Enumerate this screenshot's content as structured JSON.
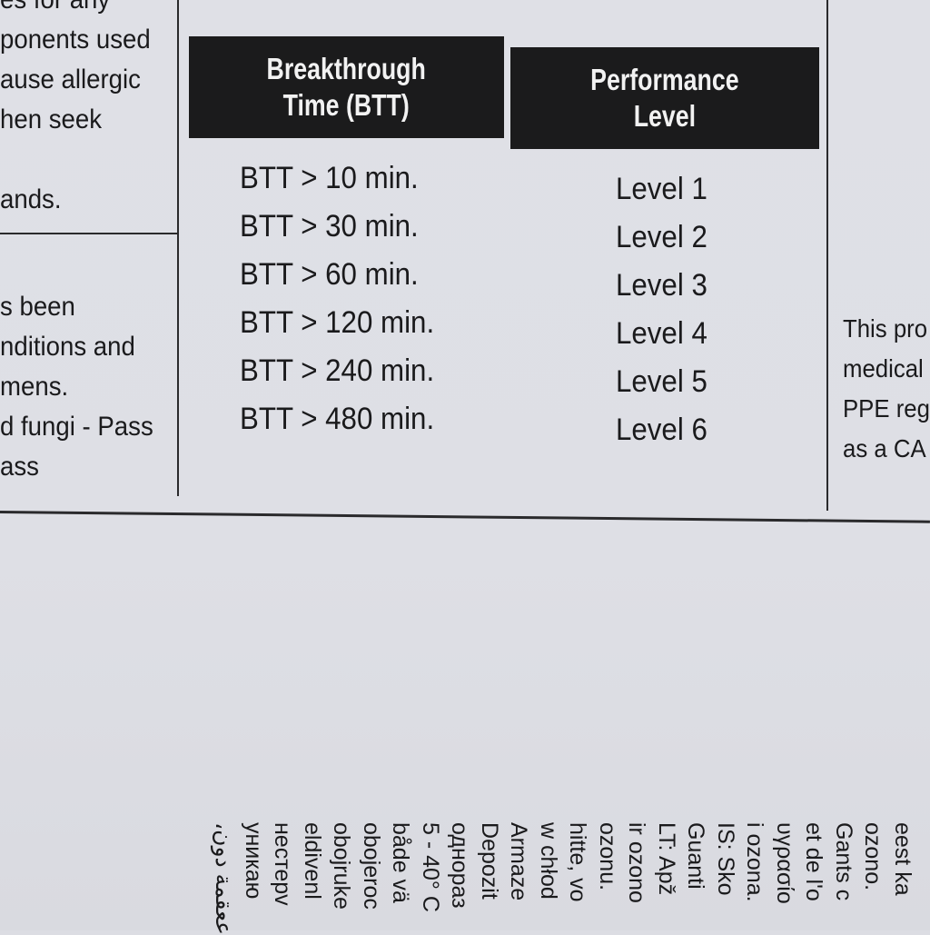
{
  "left_column": {
    "upper_lines": [
      "es for any",
      "ponents used",
      "ause allergic",
      "hen seek",
      "",
      "ands."
    ],
    "lower_lines": [
      "s been",
      "nditions and",
      "mens.",
      "d fungi - Pass",
      "ass"
    ]
  },
  "table": {
    "headers": [
      "Breakthrough Time (BTT)",
      "Performance Level"
    ],
    "header_lines": [
      [
        "Breakthrough",
        "Time (BTT)"
      ],
      [
        "Performance",
        "Level"
      ]
    ],
    "rows": [
      [
        "BTT > 10 min.",
        "Level 1"
      ],
      [
        "BTT > 30 min.",
        "Level 2"
      ],
      [
        "BTT > 60 min.",
        "Level 3"
      ],
      [
        "BTT > 120 min.",
        "Level 4"
      ],
      [
        "BTT > 240 min.",
        "Level 5"
      ],
      [
        "BTT > 480 min.",
        "Level 6"
      ]
    ]
  },
  "right_column": {
    "lines": [
      "This pro",
      "medical",
      "PPE reg",
      "as a CA"
    ]
  },
  "rotated_multilingual_lines": [
    "eest ka",
    "ozono.",
    "Gants c",
    "et de l'o",
    "υγρασίο",
    "i ozona.",
    "IS: Sko",
    "Guanti",
    "LT: Apž",
    "ir ozono",
    "ozonu. ",
    "hitte, vo",
    "w chłod",
    "Armaze",
    "Depozit",
    "однораз",
    "5 - 40° C",
    "både vä",
    "obojeroc",
    "obojruke",
    "eldivenl",
    "нестерv",
    "уникаю",
    "،ععقمة  دون"
  ]
}
